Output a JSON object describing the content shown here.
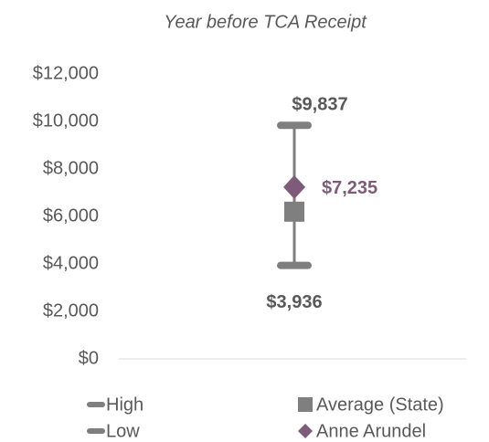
{
  "chart_data": {
    "type": "highlow",
    "subtitle": "Year before TCA Receipt",
    "categories": [
      null
    ],
    "series": [
      {
        "name": "High",
        "color": "#7f7f7f",
        "values": [
          9837
        ],
        "value_labels": [
          "$9,837"
        ]
      },
      {
        "name": "Low",
        "color": "#7f7f7f",
        "values": [
          3936
        ],
        "value_labels": [
          "$3,936"
        ]
      },
      {
        "name": "Average (State)",
        "color": "#7f7f7f",
        "values": [
          6200
        ]
      },
      {
        "name": "Anne Arundel",
        "color": "#7e5c79",
        "values": [
          7235
        ],
        "value_labels": [
          "$7,235"
        ]
      }
    ],
    "ylim": [
      0,
      12000
    ],
    "yticks": [
      {
        "value": 0,
        "label": "$0"
      },
      {
        "value": 2000,
        "label": "$2,000"
      },
      {
        "value": 4000,
        "label": "$4,000"
      },
      {
        "value": 6000,
        "label": "$6,000"
      },
      {
        "value": 8000,
        "label": "$8,000"
      },
      {
        "value": 10000,
        "label": "$10,000"
      },
      {
        "value": 12000,
        "label": "$12,000"
      }
    ]
  }
}
